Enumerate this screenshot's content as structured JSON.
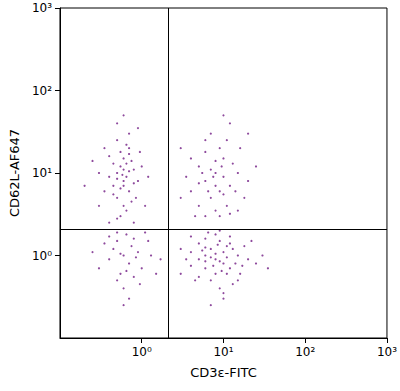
{
  "chart_data": {
    "type": "scatter",
    "x_label": "CD3ε-FITC",
    "y_label": "CD62L-AF647",
    "log": true,
    "marker": "circle",
    "color": "#7a2a8c",
    "xlim": [
      0.1,
      1000
    ],
    "ylim": [
      0.1,
      1000
    ],
    "xticks": [
      {
        "value": 1,
        "label": "10⁰"
      },
      {
        "value": 10,
        "label": "10¹"
      },
      {
        "value": 100,
        "label": "10²"
      },
      {
        "value": 1000,
        "label": "10³"
      }
    ],
    "yticks": [
      {
        "value": 1,
        "label": "10⁰"
      },
      {
        "value": 10,
        "label": "10¹"
      },
      {
        "value": 100,
        "label": "10²"
      },
      {
        "value": 1000,
        "label": "10³"
      }
    ],
    "quadrant": {
      "x": 2.1,
      "y": 2.1
    },
    "x": [
      0.6,
      0.5,
      0.7,
      0.55,
      0.65,
      0.45,
      0.8,
      0.6,
      0.5,
      0.7,
      0.4,
      0.9,
      0.35,
      0.6,
      0.75,
      0.55,
      0.5,
      0.65,
      0.85,
      0.45,
      0.3,
      0.7,
      1.0,
      0.6,
      0.5,
      0.8,
      0.4,
      0.55,
      0.65,
      0.95,
      1.2,
      0.3,
      0.25,
      0.5,
      0.9,
      0.7,
      0.6,
      0.45,
      0.75,
      0.35,
      0.55,
      0.65,
      0.5,
      0.8,
      1.1,
      0.2,
      0.6,
      0.4,
      0.7,
      0.58,
      0.5,
      0.6,
      0.7,
      0.45,
      0.8,
      0.55,
      0.9,
      0.4,
      0.65,
      1.0,
      0.35,
      0.5,
      0.75,
      0.6,
      0.85,
      1.2,
      0.3,
      0.7,
      1.5,
      0.5,
      0.6,
      0.95,
      1.3,
      0.4,
      1.7,
      0.25,
      0.8,
      1.1,
      0.55,
      0.65,
      8,
      6,
      10,
      7,
      12,
      5,
      9,
      15,
      4,
      11,
      6,
      8,
      20,
      5,
      13,
      7,
      9,
      10,
      4,
      16,
      6,
      3.5,
      12,
      8,
      7,
      18,
      5,
      11,
      9,
      14,
      6,
      3,
      25,
      10,
      8,
      4.5,
      12,
      7.5,
      9.5,
      5.5,
      20,
      3,
      15,
      6.5,
      10,
      8,
      6,
      10,
      7,
      12,
      5,
      9,
      15,
      4,
      11,
      6,
      8,
      20,
      5,
      13,
      7,
      9,
      10,
      4,
      16,
      6,
      3.5,
      12,
      8,
      7,
      18,
      5,
      11,
      9,
      14,
      6,
      3,
      25,
      10,
      8,
      4.5,
      12,
      7.5,
      9.5,
      5.5,
      30,
      3,
      15,
      6.5,
      10,
      22,
      4,
      17,
      13,
      7,
      9,
      11,
      6,
      8.5,
      35
    ],
    "values": [
      8,
      10,
      6,
      12,
      9,
      7,
      11,
      15,
      5,
      20,
      9,
      8,
      6,
      4,
      14,
      18,
      25,
      3.5,
      5,
      13,
      10,
      30,
      12,
      7,
      8.5,
      7.5,
      16,
      3,
      22,
      18,
      9,
      4,
      14,
      40,
      35,
      10.5,
      11,
      5.5,
      4.5,
      20,
      6.5,
      13,
      2.8,
      2.5,
      4,
      7,
      50,
      2.5,
      17,
      9.5,
      1.5,
      1.0,
      0.8,
      1.2,
      1.6,
      0.6,
      1.1,
      0.9,
      1.8,
      0.7,
      1.4,
      0.5,
      1.3,
      0.4,
      0.95,
      1.5,
      0.7,
      0.3,
      0.6,
      1.9,
      0.25,
      0.45,
      1.0,
      1.7,
      0.9,
      1.1,
      0.55,
      1.9,
      1.05,
      0.65,
      10,
      8,
      15,
      5,
      7,
      12,
      20,
      10,
      6,
      4,
      25,
      3.5,
      8,
      4,
      13,
      30,
      6,
      9,
      15,
      20,
      3,
      9,
      40,
      14,
      11,
      5,
      7.5,
      25,
      3,
      6,
      18,
      5,
      12,
      50,
      7,
      3,
      3.2,
      9,
      12,
      10,
      30,
      20,
      3.5,
      6,
      5.5,
      0.9,
      1.0,
      0.8,
      1.2,
      0.7,
      0.9,
      1.5,
      1.0,
      1.1,
      0.6,
      0.7,
      1.8,
      0.9,
      1.4,
      1.2,
      0.5,
      0.85,
      1.1,
      0.75,
      0.6,
      1.6,
      0.9,
      1.4,
      0.6,
      0.95,
      1.3,
      0.55,
      0.95,
      0.4,
      0.8,
      1.25,
      1.2,
      0.8,
      0.35,
      1.05,
      0.5,
      1.7,
      0.75,
      0.65,
      1.15,
      1.0,
      0.6,
      0.5,
      1.9,
      0.3,
      1.5,
      1.7,
      0.75,
      0.45,
      0.25,
      2.0,
      1.3,
      0.85,
      1.35,
      0.7
    ]
  }
}
